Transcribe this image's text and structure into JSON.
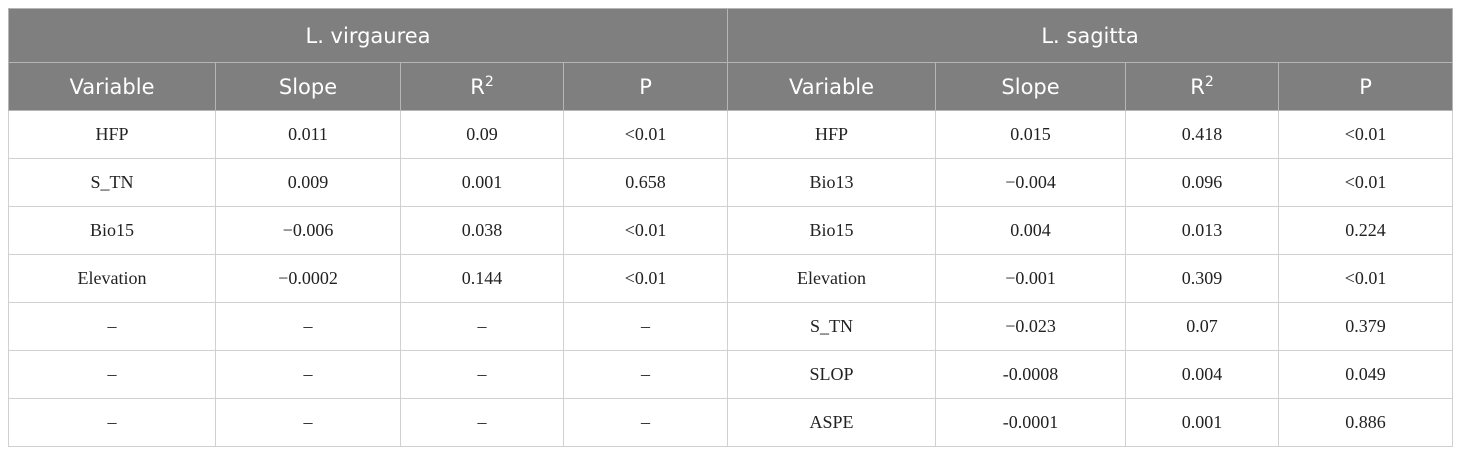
{
  "table": {
    "groups": [
      "L. virgaurea",
      "L. sagitta"
    ],
    "columns": [
      "Variable",
      "Slope",
      {
        "base": "R",
        "sup": "2"
      },
      "P",
      "Variable",
      "Slope",
      {
        "base": "R",
        "sup": "2"
      },
      "P"
    ],
    "rows": [
      [
        "HFP",
        "0.011",
        "0.09",
        "<0.01",
        "HFP",
        "0.015",
        "0.418",
        "<0.01"
      ],
      [
        "S_TN",
        "0.009",
        "0.001",
        "0.658",
        "Bio13",
        "−0.004",
        "0.096",
        "<0.01"
      ],
      [
        "Bio15",
        "−0.006",
        "0.038",
        "<0.01",
        "Bio15",
        "0.004",
        "0.013",
        "0.224"
      ],
      [
        "Elevation",
        "−0.0002",
        "0.144",
        "<0.01",
        "Elevation",
        "−0.001",
        "0.309",
        "<0.01"
      ],
      [
        "–",
        "–",
        "–",
        "–",
        "S_TN",
        "−0.023",
        "0.07",
        "0.379"
      ],
      [
        "–",
        "–",
        "–",
        "–",
        "SLOP",
        "-0.0008",
        "0.004",
        "0.049"
      ],
      [
        "–",
        "–",
        "–",
        "–",
        "ASPE",
        "-0.0001",
        "0.001",
        "0.886"
      ]
    ]
  }
}
